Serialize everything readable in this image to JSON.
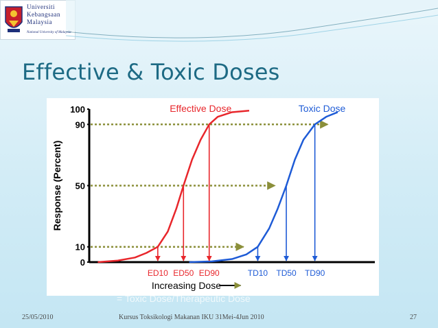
{
  "header": {
    "university_lines": [
      "Universiti",
      "Kebangsaan",
      "Malaysia"
    ],
    "university_sub": "National University of Malaysia",
    "accent": "#1d6a84"
  },
  "slide": {
    "title": "Effective & Toxic Doses"
  },
  "chart_data": {
    "type": "line",
    "ylabel": "Response (Percent)",
    "xlabel": "Increasing Dose",
    "y_ticks": [
      "100",
      "90",
      "50",
      "10",
      "0"
    ],
    "y_tick_values": [
      100,
      90,
      50,
      10,
      0
    ],
    "ylim": [
      0,
      100
    ],
    "xlim": [
      0,
      10
    ],
    "grid": false,
    "series": [
      {
        "name": "Effective Dose",
        "color": "#e8262b",
        "x": [
          0.3,
          1.0,
          1.6,
          2.0,
          2.4,
          2.75,
          3.05,
          3.3,
          3.6,
          3.9,
          4.2,
          4.5,
          5.0,
          5.6
        ],
        "values": [
          0,
          1,
          3,
          6,
          10,
          20,
          35,
          50,
          67,
          80,
          90,
          95,
          98,
          99
        ]
      },
      {
        "name": "Toxic Dose",
        "color": "#1e5bd6",
        "x": [
          3.5,
          4.3,
          5.0,
          5.5,
          5.9,
          6.3,
          6.6,
          6.9,
          7.2,
          7.5,
          7.9,
          8.3,
          8.7
        ],
        "values": [
          0,
          0.5,
          2,
          5,
          10,
          22,
          35,
          50,
          67,
          80,
          90,
          95,
          98
        ]
      }
    ],
    "guides": [
      {
        "label": "90",
        "y": 90,
        "x_end": 8.35
      },
      {
        "label": "50",
        "y": 50,
        "x_end": 6.5
      },
      {
        "label": "10",
        "y": 10,
        "x_end": 5.4
      }
    ],
    "dose_markers": [
      {
        "label": "ED10",
        "x": 2.4,
        "y": 10,
        "color": "#e8262b"
      },
      {
        "label": "ED50",
        "x": 3.3,
        "y": 50,
        "color": "#e8262b"
      },
      {
        "label": "ED90",
        "x": 4.2,
        "y": 90,
        "color": "#e8262b"
      },
      {
        "label": "TD10",
        "x": 5.9,
        "y": 10,
        "color": "#1e5bd6"
      },
      {
        "label": "TD50",
        "x": 6.9,
        "y": 50,
        "color": "#1e5bd6"
      },
      {
        "label": "TD90",
        "x": 7.9,
        "y": 90,
        "color": "#1e5bd6"
      }
    ],
    "guide_color": "#8b8f3a"
  },
  "overlay": {
    "caption": "= Toxic Dose/Therapeutic Dose"
  },
  "footer": {
    "date": "25/05/2010",
    "center": "Kursus Toksikologi Makanan IKU 31Mei-4Jun 2010",
    "page": "27"
  }
}
